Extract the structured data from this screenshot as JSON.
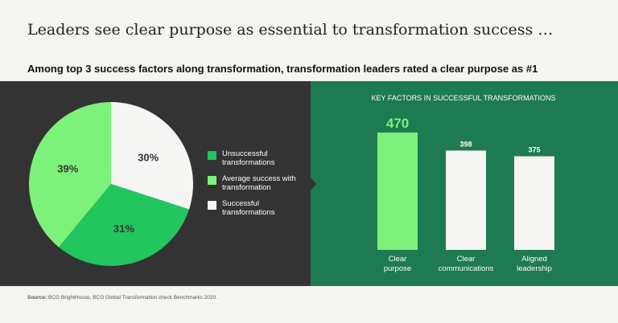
{
  "title": "Leaders see clear purpose as essential to transformation success …",
  "subtitle": "Among top 3 success factors along transformation, transformation leaders rated a clear purpose as #1",
  "source": {
    "label": "Source:",
    "text": "BCG BrightHouse, BCG Global Transformation check Benchmarks 2020."
  },
  "chart_data": [
    {
      "type": "pie",
      "title": "",
      "labels": [
        "Unsuccessful transformations",
        "Average success with transformation",
        "Successful transformations"
      ],
      "values": [
        31,
        39,
        30
      ],
      "value_labels": [
        "31%",
        "39%",
        "30%"
      ],
      "colors": [
        "#22c55e",
        "#7cf27a",
        "#f5f5f3"
      ],
      "legend": [
        {
          "label": "Unsuccessful transformations",
          "color": "#22c55e"
        },
        {
          "label": "Average success with transformation",
          "color": "#7cf27a"
        },
        {
          "label": "Successful transformations",
          "color": "#f5f5f3"
        }
      ],
      "legend_placement": "right"
    },
    {
      "type": "bar",
      "title": "KEY FACTORS IN SUCCESSFUL TRANSFORMATIONS",
      "categories": [
        "Clear purpose",
        "Clear communications",
        "Aligned leadership"
      ],
      "values": [
        470,
        398,
        375
      ],
      "value_labels": [
        "470",
        "398",
        "375"
      ],
      "colors": [
        "#7cf27a",
        "#f5f5f3",
        "#f5f5f3"
      ],
      "ylim": [
        0,
        470
      ],
      "grid": false
    }
  ]
}
